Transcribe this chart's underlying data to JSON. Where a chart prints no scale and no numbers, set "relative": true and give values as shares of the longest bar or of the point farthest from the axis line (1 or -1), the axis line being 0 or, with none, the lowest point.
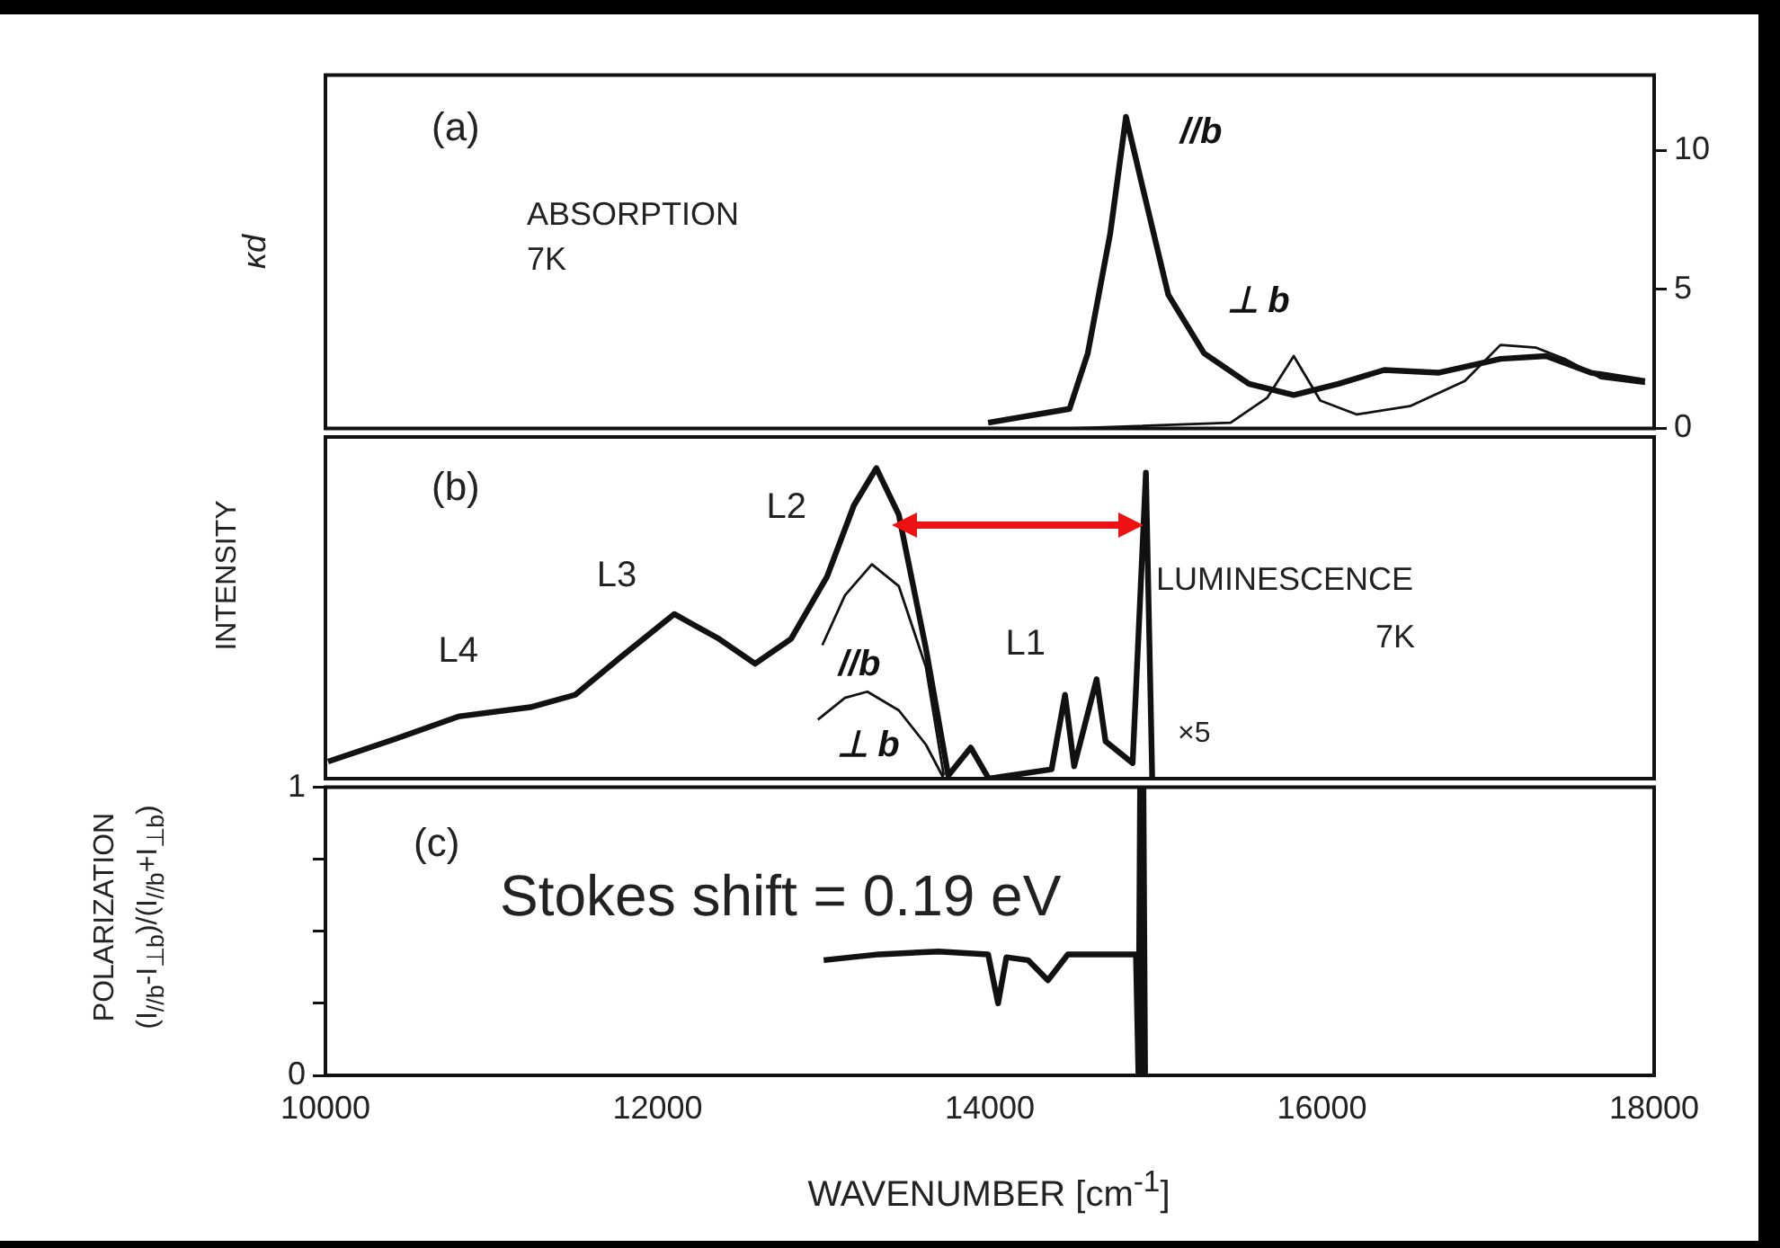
{
  "chart_data": [
    {
      "type": "line",
      "ylabel": "κd",
      "xlim": [
        10000,
        18000
      ],
      "xticks": [
        10000,
        12000,
        14000,
        16000,
        18000
      ],
      "ylim": [
        0,
        12.7
      ],
      "yticks": [
        0,
        5,
        10
      ],
      "tick_labels": "y",
      "grid": false,
      "legend": false,
      "marker": "none",
      "annotations": [
        "(a)",
        "ABSORPTION\n7K"
      ],
      "series": [
        {
          "name": "//b",
          "color": "#111111",
          "x": [
            13990,
            14480,
            14590,
            14725,
            14820,
            14915,
            15075,
            15290,
            15560,
            15830,
            16100,
            16375,
            16700,
            17075,
            17350,
            17620,
            17945
          ],
          "values": [
            0.2,
            0.7,
            2.7,
            7,
            11.2,
            8.8,
            4.8,
            2.7,
            1.6,
            1.2,
            1.6,
            2.1,
            2.0,
            2.5,
            2.6,
            2.0,
            1.7
          ]
        },
        {
          "name": "⊥ b",
          "color": "#111111",
          "x": [
            14500,
            15450,
            15670,
            15830,
            15990,
            16210,
            16530,
            16860,
            17075,
            17290,
            17460,
            17680,
            17945
          ],
          "values": [
            0,
            0.2,
            1.1,
            2.6,
            1.0,
            0.5,
            0.8,
            1.7,
            3.0,
            2.9,
            2.5,
            1.8,
            1.6
          ]
        }
      ]
    },
    {
      "type": "line",
      "ylabel": "INTENSITY",
      "relative": true,
      "xlim": [
        10000,
        18000
      ],
      "xticks": [
        10000,
        12000,
        14000,
        16000,
        18000
      ],
      "tick_labels": false,
      "grid": false,
      "legend": false,
      "marker": "none",
      "annotations": [
        "(b)",
        {
          "text": "L2",
          "x": 13317,
          "y": 1.0
        },
        {
          "text": "L3",
          "x": 12100,
          "y": 0.53
        },
        {
          "text": "L4",
          "x": 10800,
          "y": 0.2
        },
        {
          "text": "L1",
          "x": 14453,
          "y": 0.27
        },
        "LUMINESCENCE",
        "7K",
        "×5"
      ],
      "series": [
        {
          "color": "#111111",
          "x": [
            10016,
            10422,
            10800,
            11234,
            11504,
            11775,
            12100,
            12370,
            12587,
            12803,
            13020,
            13182,
            13317,
            13452,
            13615,
            13750,
            13885,
            13994,
            14372,
            14453,
            14508,
            14643,
            14697,
            14860,
            14940,
            14978
          ],
          "values": [
            0.055,
            0.128,
            0.2,
            0.23,
            0.27,
            0.39,
            0.53,
            0.45,
            0.37,
            0.45,
            0.65,
            0.88,
            1.0,
            0.85,
            0.42,
            0.01,
            0.1,
            0,
            0.03,
            0.27,
            0.04,
            0.32,
            0.12,
            0.05,
            0.985,
            0
          ]
        },
        {
          "name": "//b",
          "color": "#111111",
          "x": [
            12992,
            13128,
            13290,
            13452,
            13615,
            13723
          ],
          "values": [
            0.43,
            0.59,
            0.69,
            0.62,
            0.36,
            0.01
          ]
        },
        {
          "name": "⊥ b",
          "color": "#111111",
          "x": [
            12965,
            13128,
            13263,
            13452,
            13615,
            13723
          ],
          "values": [
            0.19,
            0.26,
            0.28,
            0.22,
            0.11,
            0
          ]
        }
      ]
    },
    {
      "type": "line",
      "ylabel": "POLARIZATION\n(I$_{//b}$-I$_{⊥b}$)/(I$_{//b}$+I$_{⊥b}$)",
      "xlabel": "WAVENUMBER [cm$^{-1}$]",
      "xlim": [
        10000,
        18000
      ],
      "xticks": [
        10000,
        12000,
        14000,
        16000,
        18000
      ],
      "ylim": [
        0,
        1
      ],
      "yticks": [
        0,
        {
          "value": 0.25,
          "label": null
        },
        {
          "value": 0.5,
          "label": null
        },
        {
          "value": 0.75,
          "label": null
        },
        1
      ],
      "grid": false,
      "legend": false,
      "marker": "none",
      "annotations": [
        "(c)",
        "Stokes shift = 0.19 eV"
      ],
      "series": [
        {
          "color": "#111111",
          "x": [
            13000,
            13333,
            13690,
            13990,
            14050,
            14100,
            14230,
            14350,
            14470,
            14840,
            14880,
            14895,
            14905,
            14915,
            14925,
            14935
          ],
          "values": [
            0.4,
            0.42,
            0.43,
            0.42,
            0.25,
            0.41,
            0.4,
            0.33,
            0.42,
            0.42,
            0.42,
            0,
            1,
            0,
            1,
            0
          ]
        }
      ]
    }
  ]
}
